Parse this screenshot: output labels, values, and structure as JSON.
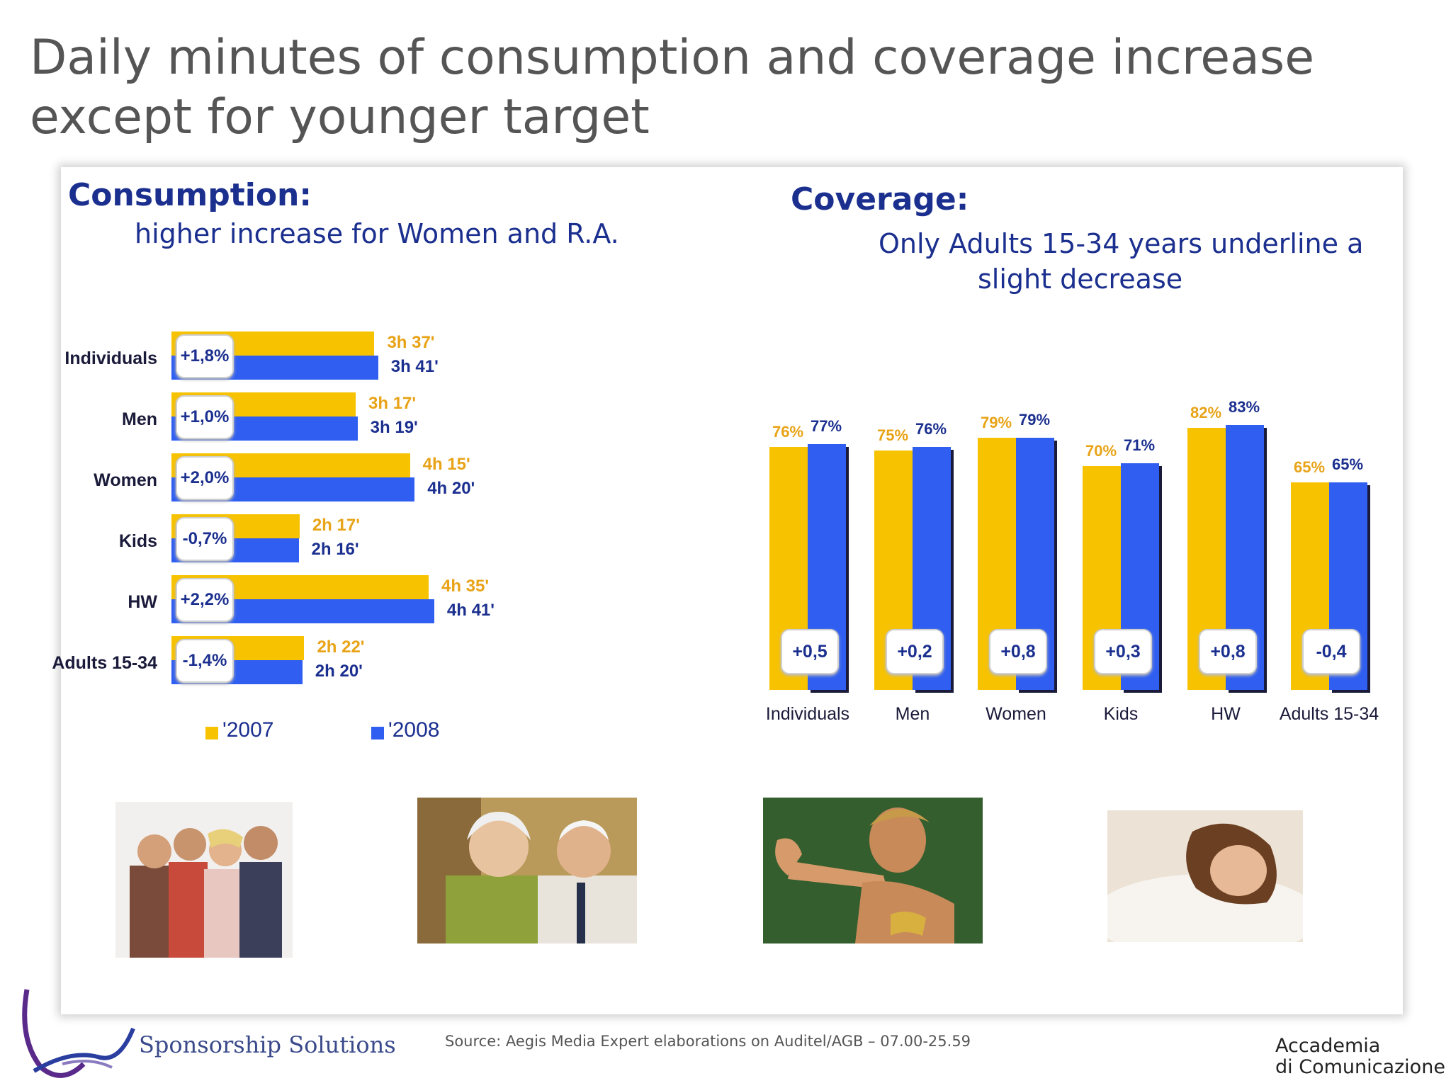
{
  "title": "Daily minutes of consumption and coverage increase except for younger target",
  "consumption": {
    "heading": "Consumption:",
    "subheading": "higher increase for Women and R.A."
  },
  "coverage": {
    "heading": "Coverage:",
    "subheading_line1": "Only Adults 15-34 years underline a",
    "subheading_line2": "slight decrease"
  },
  "colors": {
    "y2007": "#f7c200",
    "y2008": "#2f5ef0",
    "text_dark_blue": "#1b2f8f",
    "label_orange": "#e8a317"
  },
  "chart_data": [
    {
      "type": "bar",
      "orientation": "horizontal",
      "unit": "minutes",
      "categories": [
        "Individuals",
        "Men",
        "Women",
        "Kids",
        "HW",
        "Adults 15-34"
      ],
      "series": [
        {
          "name": "'2007",
          "values": [
            217,
            197,
            255,
            137,
            275,
            142
          ],
          "labels": [
            "3h 37'",
            "3h 17'",
            "4h 15'",
            "2h 17'",
            "4h 35'",
            "2h 22'"
          ]
        },
        {
          "name": "'2008",
          "values": [
            221,
            199,
            260,
            136,
            281,
            140
          ],
          "labels": [
            "3h 41'",
            "3h 19'",
            "4h 20'",
            "2h 16'",
            "4h 41'",
            "2h 20'"
          ]
        }
      ],
      "changes": [
        "+1,8%",
        "+1,0%",
        "+2,0%",
        "-0,7%",
        "+2,2%",
        "-1,4%"
      ],
      "legend": [
        "'2007",
        "'2008"
      ],
      "legend_position": "bottom"
    },
    {
      "type": "bar",
      "orientation": "vertical",
      "unit": "%",
      "categories": [
        "Individuals",
        "Men",
        "Women",
        "Kids",
        "HW",
        "Adults 15-34"
      ],
      "series": [
        {
          "name": "'2007",
          "values": [
            76,
            75,
            79,
            70,
            82,
            65
          ],
          "labels": [
            "76%",
            "75%",
            "79%",
            "70%",
            "82%",
            "65%"
          ]
        },
        {
          "name": "'2008",
          "values": [
            77,
            76,
            79,
            71,
            83,
            65
          ],
          "labels": [
            "77%",
            "76%",
            "79%",
            "71%",
            "83%",
            "65%"
          ]
        }
      ],
      "changes": [
        "+0,5",
        "+0,2",
        "+0,8",
        "+0,3",
        "+0,8",
        "-0,4"
      ]
    }
  ],
  "footer": {
    "brand": "Sponsorship Solutions",
    "source": "Source: Aegis Media Expert elaborations on Auditel/AGB – 07.00-25.59",
    "partner_line1": "Accademia",
    "partner_line2": "di Comunicazione"
  }
}
